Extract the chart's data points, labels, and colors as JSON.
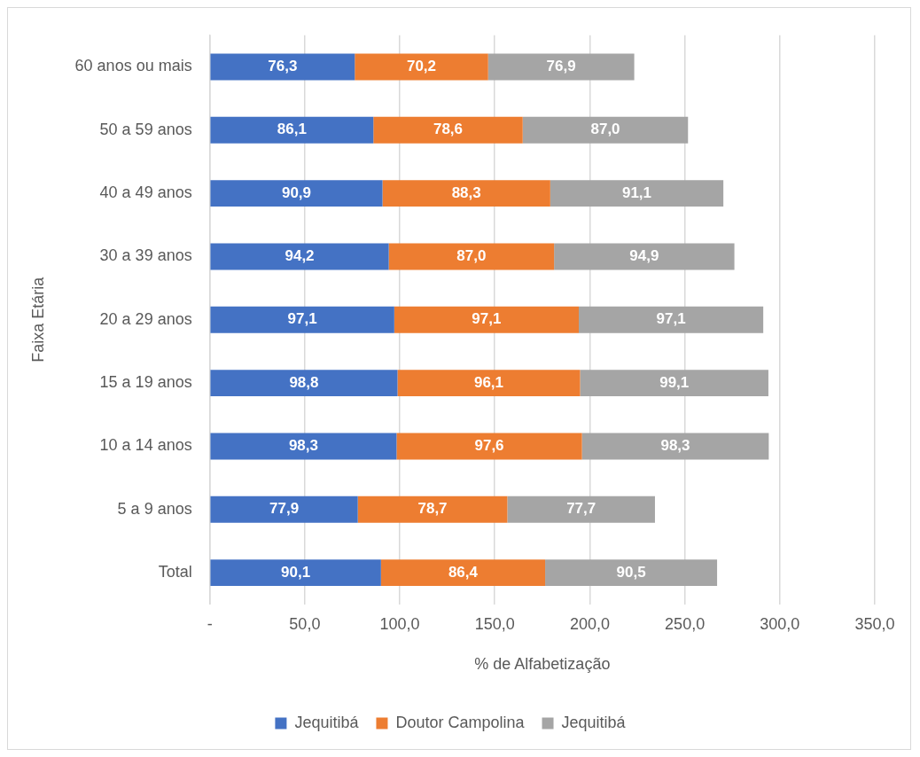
{
  "chart_data": {
    "type": "bar",
    "orientation": "horizontal",
    "stacked": true,
    "xlabel": "% de Alfabetização",
    "ylabel": "Faixa Etária",
    "categories": [
      "60 anos ou mais",
      "50 a 59 anos",
      "40 a 49 anos",
      "30 a 39 anos",
      "20 a 29 anos",
      "15 a 19 anos",
      "10 a 14 anos",
      "5 a 9 anos",
      "Total"
    ],
    "series": [
      {
        "name": "Jequitibá",
        "color": "#4472c4",
        "values": [
          76.3,
          86.1,
          90.9,
          94.2,
          97.1,
          98.8,
          98.3,
          77.9,
          90.1
        ],
        "value_labels": [
          "76,3",
          "86,1",
          "90,9",
          "94,2",
          "97,1",
          "98,8",
          "98,3",
          "77,9",
          "90,1"
        ]
      },
      {
        "name": "Doutor Campolina",
        "color": "#ed7d31",
        "values": [
          70.2,
          78.6,
          88.3,
          87.0,
          97.1,
          96.1,
          97.6,
          78.7,
          86.4
        ],
        "value_labels": [
          "70,2",
          "78,6",
          "88,3",
          "87,0",
          "97,1",
          "96,1",
          "97,6",
          "78,7",
          "86,4"
        ]
      },
      {
        "name": "Jequitibá",
        "color": "#a5a5a5",
        "values": [
          76.9,
          87.0,
          91.1,
          94.9,
          97.1,
          99.1,
          98.3,
          77.7,
          90.5
        ],
        "value_labels": [
          "76,9",
          "87,0",
          "91,1",
          "94,9",
          "97,1",
          "99,1",
          "98,3",
          "77,7",
          "90,5"
        ]
      }
    ],
    "xlim": [
      0,
      350
    ],
    "xticks": [
      {
        "value": 0,
        "label": "-"
      },
      {
        "value": 50,
        "label": "50,0"
      },
      {
        "value": 100,
        "label": "100,0"
      },
      {
        "value": 150,
        "label": "150,0"
      },
      {
        "value": 200,
        "label": "200,0"
      },
      {
        "value": 250,
        "label": "250,0"
      },
      {
        "value": 300,
        "label": "300,0"
      },
      {
        "value": 350,
        "label": "350,0"
      }
    ],
    "grid": "x",
    "legend": "bottom"
  }
}
